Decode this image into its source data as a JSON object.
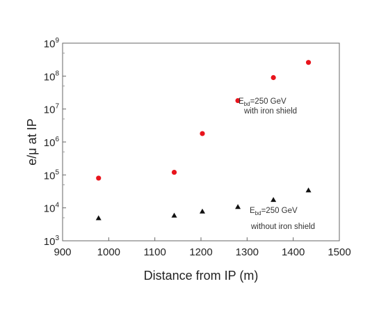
{
  "chart_data": {
    "type": "scatter",
    "title": "",
    "xlabel": "Distance from IP (m)",
    "ylabel": "e/μ at IP",
    "xlim": [
      900,
      1500
    ],
    "ylim": [
      1000,
      1000000000
    ],
    "yscale": "log",
    "grid": false,
    "legend": "none",
    "x_ticks": [
      "900",
      "1000",
      "1100",
      "1200",
      "1300",
      "1400",
      "1500"
    ],
    "y_ticks": [
      {
        "base": "10",
        "exp": "3"
      },
      {
        "base": "10",
        "exp": "4"
      },
      {
        "base": "10",
        "exp": "5"
      },
      {
        "base": "10",
        "exp": "6"
      },
      {
        "base": "10",
        "exp": "7"
      },
      {
        "base": "10",
        "exp": "8"
      },
      {
        "base": "10",
        "exp": "9"
      }
    ],
    "series": [
      {
        "marker": "circle",
        "color": "#e8141c",
        "x": [
          978,
          1142,
          1203,
          1280,
          1357,
          1433
        ],
        "y": [
          80000,
          120000,
          1800000,
          18000000,
          90000000,
          260000000
        ]
      },
      {
        "marker": "triangle",
        "color": "#111111",
        "x": [
          978,
          1142,
          1203,
          1280,
          1357,
          1433
        ],
        "y": [
          5000,
          6000,
          8000,
          11000,
          18000,
          35000
        ]
      }
    ],
    "annotations": [
      {
        "main": "E",
        "sub": "bd",
        "rest": "=250 GeV",
        "line2": "with iron shield"
      },
      {
        "main": "E",
        "sub": "bd",
        "rest": "=250 GeV",
        "line2": "without iron shield"
      }
    ]
  }
}
